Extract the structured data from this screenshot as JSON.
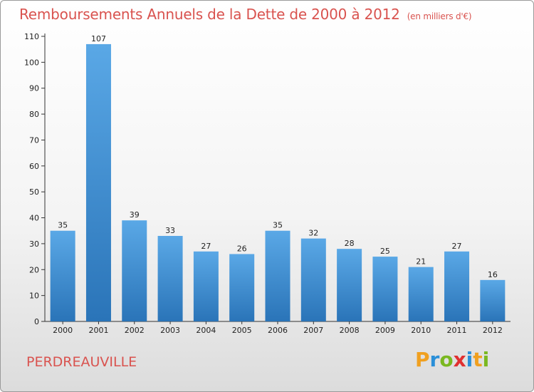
{
  "header": {
    "title": "Remboursements Annuels de la Dette de 2000 à 2012",
    "subtitle": "(en milliers d'€)"
  },
  "footer": {
    "commune": "PERDREAUVILLE",
    "logo": [
      "P",
      "r",
      "o",
      "x",
      "i",
      "t",
      "i"
    ]
  },
  "colors": {
    "title": "#d9534f",
    "bar_top": "#5aa8e6",
    "bar_bottom": "#2a74b8",
    "logo": [
      "#f0a020",
      "#2a8fd8",
      "#7ab820",
      "#e03030",
      "#2a8fd8",
      "#f0a020",
      "#7ab820"
    ]
  },
  "chart_data": {
    "type": "bar",
    "title": "Remboursements Annuels de la Dette de 2000 à 2012",
    "subtitle": "(en milliers d'€)",
    "categories": [
      "2000",
      "2001",
      "2002",
      "2003",
      "2004",
      "2005",
      "2006",
      "2007",
      "2008",
      "2009",
      "2010",
      "2011",
      "2012"
    ],
    "values": [
      35,
      107,
      39,
      33,
      27,
      26,
      35,
      32,
      28,
      25,
      21,
      27,
      16
    ],
    "ylim": [
      0,
      110
    ],
    "yticks": [
      0,
      10,
      20,
      30,
      40,
      50,
      60,
      70,
      80,
      90,
      100,
      110
    ],
    "grid": false,
    "legend": "none"
  }
}
